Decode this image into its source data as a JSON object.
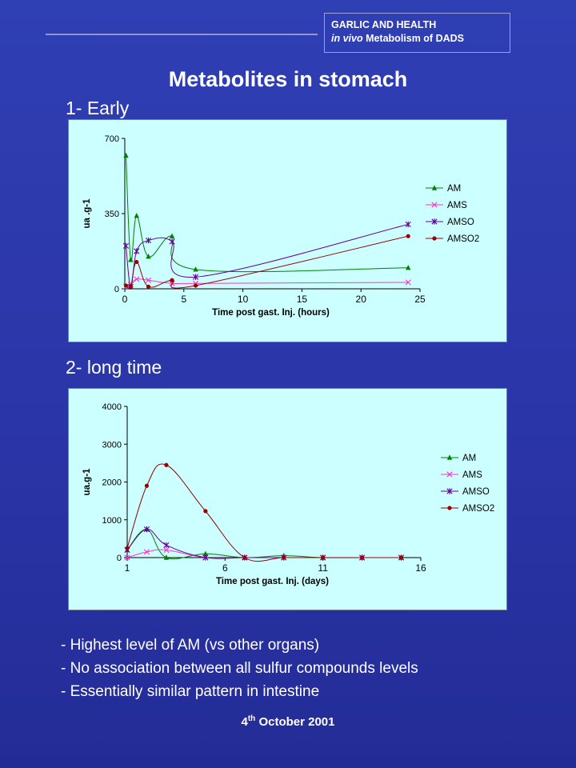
{
  "header": {
    "line1": "GARLIC AND HEALTH",
    "line2_italic": "in vivo",
    "line2_rest": " Metabolism of DADS"
  },
  "title": "Metabolites in stomach",
  "section1": "1- Early",
  "section2": "2- long time",
  "bullets": [
    "- Highest level of AM (vs other organs)",
    "- No association between all sulfur compounds levels",
    "- Essentially similar pattern in intestine"
  ],
  "footer": {
    "day": "4",
    "suffix": "th",
    "rest": " October 2001"
  },
  "colors": {
    "AM": "#008000",
    "AMS": "#ff33cc",
    "AMSO": "#660099",
    "AMSO2": "#990000"
  },
  "chart_data": [
    {
      "type": "line",
      "xlabel": "Time post gast. Inj. (hours)",
      "ylabel": "ua .g-1",
      "xlim": [
        0,
        25
      ],
      "ylim": [
        0,
        700
      ],
      "xticks": [
        0,
        5,
        10,
        15,
        20,
        25
      ],
      "yticks": [
        0,
        350,
        700
      ],
      "legend": "right",
      "series": [
        {
          "name": "AM",
          "marker": "triangle",
          "x": [
            0.1,
            0.5,
            1,
            2,
            4,
            6,
            24
          ],
          "y": [
            620,
            135,
            340,
            150,
            245,
            90,
            98
          ]
        },
        {
          "name": "AMS",
          "marker": "x",
          "x": [
            0.1,
            0.5,
            1,
            2,
            4,
            6,
            24
          ],
          "y": [
            10,
            20,
            45,
            40,
            25,
            25,
            30
          ]
        },
        {
          "name": "AMSO",
          "marker": "star",
          "x": [
            0.1,
            0.5,
            1,
            2,
            4,
            6,
            24
          ],
          "y": [
            200,
            10,
            175,
            225,
            220,
            55,
            300
          ]
        },
        {
          "name": "AMSO2",
          "marker": "circle",
          "x": [
            0.1,
            0.5,
            1,
            2,
            4,
            6,
            24
          ],
          "y": [
            15,
            10,
            125,
            10,
            40,
            15,
            245
          ]
        }
      ]
    },
    {
      "type": "line",
      "xlabel": "Time post gast. Inj. (days)",
      "ylabel": "ua.g-1",
      "xlim": [
        1,
        16
      ],
      "ylim": [
        0,
        4000
      ],
      "xticks": [
        1,
        6,
        11,
        16
      ],
      "yticks": [
        0,
        1000,
        2000,
        3000,
        4000
      ],
      "legend": "right",
      "series": [
        {
          "name": "AM",
          "marker": "triangle",
          "x": [
            1,
            2,
            3,
            5,
            7,
            9,
            11,
            13,
            15
          ],
          "y": [
            200,
            750,
            0,
            100,
            0,
            50,
            0,
            0,
            0
          ]
        },
        {
          "name": "AMS",
          "marker": "x",
          "x": [
            1,
            2,
            3,
            5,
            7,
            9,
            11,
            13,
            15
          ],
          "y": [
            0,
            150,
            200,
            0,
            0,
            0,
            0,
            0,
            0
          ]
        },
        {
          "name": "AMSO",
          "marker": "star",
          "x": [
            1,
            2,
            3,
            5,
            7,
            9,
            11,
            13,
            15
          ],
          "y": [
            200,
            750,
            330,
            0,
            0,
            0,
            0,
            0,
            0
          ]
        },
        {
          "name": "AMSO2",
          "marker": "circle",
          "x": [
            1,
            2,
            3,
            5,
            7,
            9,
            11,
            13,
            15
          ],
          "y": [
            250,
            1900,
            2450,
            1230,
            0,
            0,
            0,
            0,
            0
          ]
        }
      ]
    }
  ]
}
